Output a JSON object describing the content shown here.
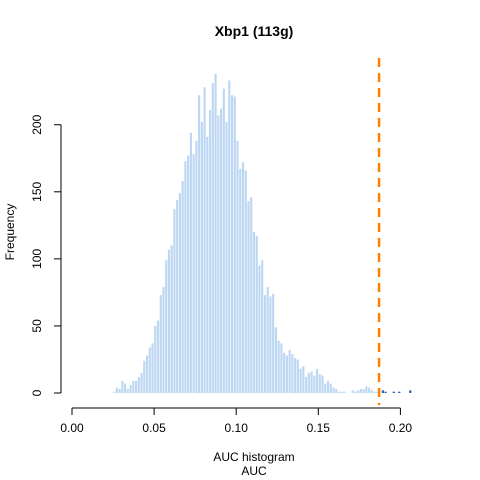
{
  "chart_data": {
    "type": "bar",
    "title": "Xbp1 (113g)",
    "xlabel": "AUC histogram",
    "xlabel2": "AUC",
    "ylabel": "Frequency",
    "xlim": [
      0.0,
      0.225
    ],
    "ylim": [
      0,
      250
    ],
    "xticks": [
      "0.00",
      "0.05",
      "0.10",
      "0.15",
      "0.20"
    ],
    "xtick_values": [
      0.0,
      0.05,
      0.1,
      0.15,
      0.2
    ],
    "yticks": [
      "0",
      "50",
      "100",
      "150",
      "200"
    ],
    "ytick_values": [
      0,
      50,
      100,
      150,
      200
    ],
    "threshold": 0.187,
    "threshold_color": "#FF7F00",
    "bar_color_below": "#BDD7F2",
    "bar_color_above": "#1F5FB0",
    "bin_width": 0.00167,
    "bin_start": 0.025,
    "values": [
      1,
      4,
      3,
      9,
      7,
      3,
      6,
      9,
      9,
      12,
      15,
      24,
      28,
      34,
      37,
      50,
      54,
      73,
      79,
      99,
      107,
      110,
      137,
      144,
      149,
      158,
      173,
      177,
      194,
      178,
      188,
      222,
      202,
      228,
      191,
      211,
      231,
      238,
      207,
      212,
      227,
      202,
      233,
      222,
      221,
      188,
      167,
      172,
      166,
      143,
      146,
      120,
      117,
      95,
      99,
      73,
      79,
      72,
      74,
      49,
      39,
      37,
      30,
      28,
      32,
      29,
      26,
      25,
      18,
      20,
      12,
      15,
      16,
      13,
      18,
      14,
      13,
      7,
      9,
      7,
      4,
      3,
      1,
      1,
      1,
      0,
      0,
      2,
      1,
      2,
      3,
      3,
      5,
      4,
      2,
      1,
      1,
      0,
      2,
      1,
      0,
      0,
      1,
      0,
      1,
      0,
      0,
      0,
      2
    ],
    "grid": false,
    "legend": "none"
  }
}
